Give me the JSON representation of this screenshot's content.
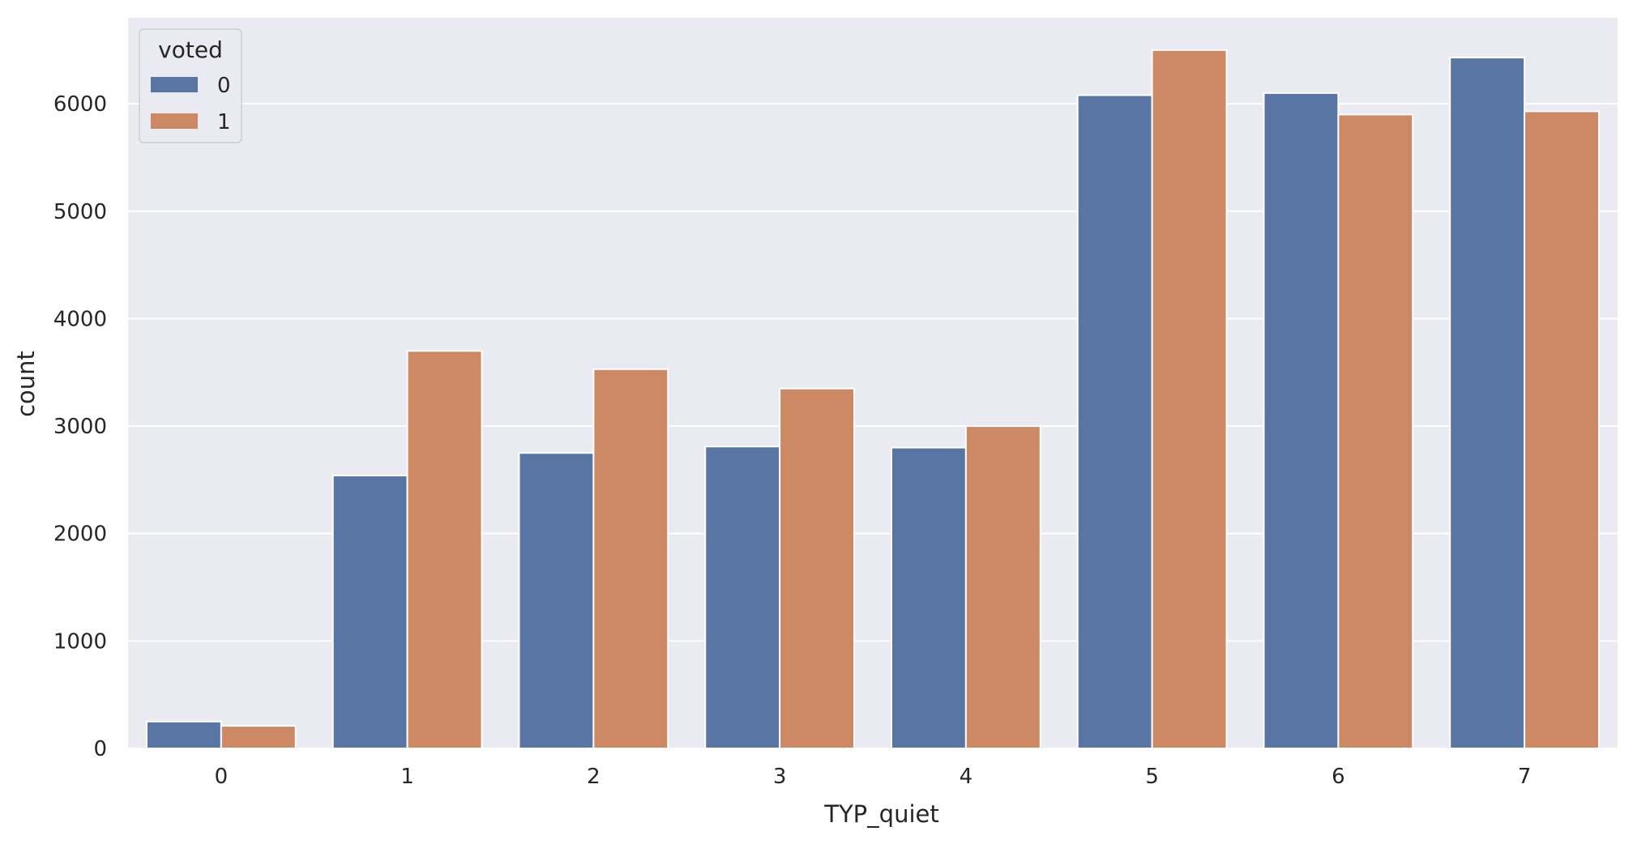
{
  "chart_data": {
    "type": "bar",
    "xlabel": "TYP_quiet",
    "ylabel": "count",
    "categories": [
      "0",
      "1",
      "2",
      "3",
      "4",
      "5",
      "6",
      "7"
    ],
    "series": [
      {
        "name": "0",
        "values": [
          250,
          2540,
          2750,
          2810,
          2800,
          6080,
          6100,
          6430
        ],
        "color": "#5975a4"
      },
      {
        "name": "1",
        "values": [
          210,
          3700,
          3530,
          3350,
          3000,
          6500,
          5900,
          5930
        ],
        "color": "#cc8963"
      }
    ],
    "ylim": [
      0,
      6800
    ],
    "yticks": [
      0,
      1000,
      2000,
      3000,
      4000,
      5000,
      6000
    ],
    "grid": true,
    "background": "#eaeaf2",
    "legend": {
      "title": "voted",
      "placement": "top-left"
    }
  }
}
